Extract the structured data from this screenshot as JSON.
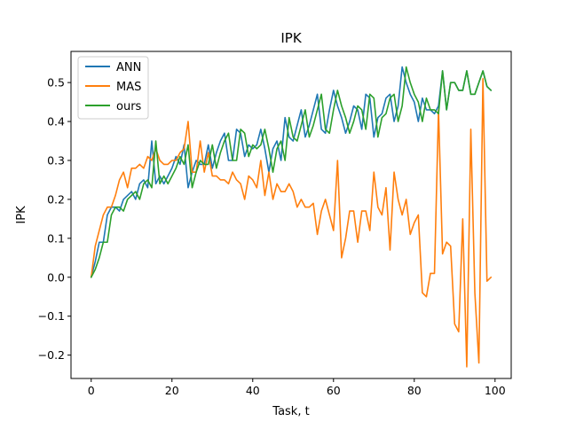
{
  "chart_data": {
    "type": "line",
    "title": "IPK",
    "xlabel": "Task, t",
    "ylabel": "IPK",
    "xlim": [
      -5,
      104
    ],
    "ylim": [
      -0.26,
      0.58
    ],
    "xticks": [
      0,
      20,
      40,
      60,
      80,
      100
    ],
    "xtick_labels": [
      "0",
      "20",
      "40",
      "60",
      "80",
      "100"
    ],
    "yticks": [
      -0.2,
      -0.1,
      0.0,
      0.1,
      0.2,
      0.3,
      0.4,
      0.5
    ],
    "ytick_labels": [
      "−0.2",
      "−0.1",
      "0.0",
      "0.1",
      "0.2",
      "0.3",
      "0.4",
      "0.5"
    ],
    "grid": false,
    "legend_position": "upper-left",
    "x": [
      0,
      1,
      2,
      3,
      4,
      5,
      6,
      7,
      8,
      9,
      10,
      11,
      12,
      13,
      14,
      15,
      16,
      17,
      18,
      19,
      20,
      21,
      22,
      23,
      24,
      25,
      26,
      27,
      28,
      29,
      30,
      31,
      32,
      33,
      34,
      35,
      36,
      37,
      38,
      39,
      40,
      41,
      42,
      43,
      44,
      45,
      46,
      47,
      48,
      49,
      50,
      51,
      52,
      53,
      54,
      55,
      56,
      57,
      58,
      59,
      60,
      61,
      62,
      63,
      64,
      65,
      66,
      67,
      68,
      69,
      70,
      71,
      72,
      73,
      74,
      75,
      76,
      77,
      78,
      79,
      80,
      81,
      82,
      83,
      84,
      85,
      86,
      87,
      88,
      89,
      90,
      91,
      92,
      93,
      94,
      95,
      96,
      97,
      98,
      99
    ],
    "series": [
      {
        "name": "ANN",
        "color": "#1f77b4",
        "values": [
          0.0,
          0.04,
          0.09,
          0.09,
          0.16,
          0.18,
          0.18,
          0.17,
          0.2,
          0.21,
          0.22,
          0.2,
          0.24,
          0.25,
          0.23,
          0.35,
          0.24,
          0.26,
          0.24,
          0.26,
          0.28,
          0.31,
          0.29,
          0.34,
          0.23,
          0.27,
          0.3,
          0.29,
          0.29,
          0.34,
          0.28,
          0.32,
          0.35,
          0.37,
          0.3,
          0.3,
          0.38,
          0.37,
          0.31,
          0.34,
          0.33,
          0.34,
          0.38,
          0.33,
          0.27,
          0.33,
          0.35,
          0.3,
          0.41,
          0.36,
          0.35,
          0.39,
          0.43,
          0.36,
          0.39,
          0.43,
          0.47,
          0.38,
          0.37,
          0.43,
          0.48,
          0.44,
          0.41,
          0.37,
          0.4,
          0.44,
          0.43,
          0.38,
          0.47,
          0.46,
          0.36,
          0.41,
          0.42,
          0.46,
          0.47,
          0.4,
          0.44,
          0.54,
          0.5,
          0.47,
          0.45,
          0.4,
          0.46,
          0.43,
          0.43,
          0.42,
          0.44,
          0.53,
          0.43,
          0.5,
          0.5,
          0.48,
          0.48,
          0.53,
          0.47,
          0.47,
          0.5,
          0.53,
          0.49,
          0.48
        ]
      },
      {
        "name": "MAS",
        "color": "#ff7f0e",
        "values": [
          0.0,
          0.08,
          0.12,
          0.16,
          0.18,
          0.18,
          0.21,
          0.25,
          0.27,
          0.23,
          0.28,
          0.28,
          0.29,
          0.28,
          0.31,
          0.3,
          0.33,
          0.3,
          0.29,
          0.29,
          0.3,
          0.3,
          0.32,
          0.33,
          0.4,
          0.27,
          0.27,
          0.35,
          0.27,
          0.32,
          0.26,
          0.26,
          0.25,
          0.25,
          0.24,
          0.27,
          0.25,
          0.24,
          0.2,
          0.26,
          0.25,
          0.23,
          0.3,
          0.21,
          0.27,
          0.2,
          0.24,
          0.22,
          0.22,
          0.24,
          0.22,
          0.18,
          0.2,
          0.18,
          0.18,
          0.19,
          0.11,
          0.17,
          0.2,
          0.16,
          0.12,
          0.3,
          0.05,
          0.1,
          0.17,
          0.17,
          0.09,
          0.17,
          0.17,
          0.12,
          0.27,
          0.18,
          0.16,
          0.23,
          0.07,
          0.27,
          0.2,
          0.16,
          0.2,
          0.11,
          0.14,
          0.16,
          -0.04,
          -0.05,
          0.01,
          0.01,
          0.43,
          0.06,
          0.09,
          0.08,
          -0.12,
          -0.14,
          0.15,
          -0.23,
          0.38,
          -0.04,
          -0.22,
          0.51,
          -0.01,
          0.0
        ]
      },
      {
        "name": "ours",
        "color": "#2ca02c",
        "values": [
          0.0,
          0.02,
          0.05,
          0.09,
          0.09,
          0.16,
          0.18,
          0.18,
          0.17,
          0.2,
          0.21,
          0.22,
          0.2,
          0.24,
          0.25,
          0.23,
          0.35,
          0.24,
          0.26,
          0.24,
          0.26,
          0.28,
          0.31,
          0.29,
          0.34,
          0.23,
          0.27,
          0.3,
          0.29,
          0.29,
          0.34,
          0.28,
          0.32,
          0.35,
          0.37,
          0.3,
          0.3,
          0.38,
          0.37,
          0.31,
          0.34,
          0.33,
          0.34,
          0.38,
          0.33,
          0.27,
          0.33,
          0.35,
          0.3,
          0.41,
          0.36,
          0.35,
          0.39,
          0.43,
          0.36,
          0.39,
          0.43,
          0.47,
          0.38,
          0.37,
          0.43,
          0.48,
          0.44,
          0.41,
          0.37,
          0.4,
          0.44,
          0.43,
          0.38,
          0.47,
          0.46,
          0.36,
          0.41,
          0.42,
          0.46,
          0.47,
          0.4,
          0.44,
          0.54,
          0.5,
          0.47,
          0.45,
          0.4,
          0.46,
          0.43,
          0.43,
          0.42,
          0.53,
          0.43,
          0.5,
          0.5,
          0.48,
          0.48,
          0.53,
          0.47,
          0.47,
          0.5,
          0.53,
          0.49,
          0.48
        ]
      }
    ]
  }
}
